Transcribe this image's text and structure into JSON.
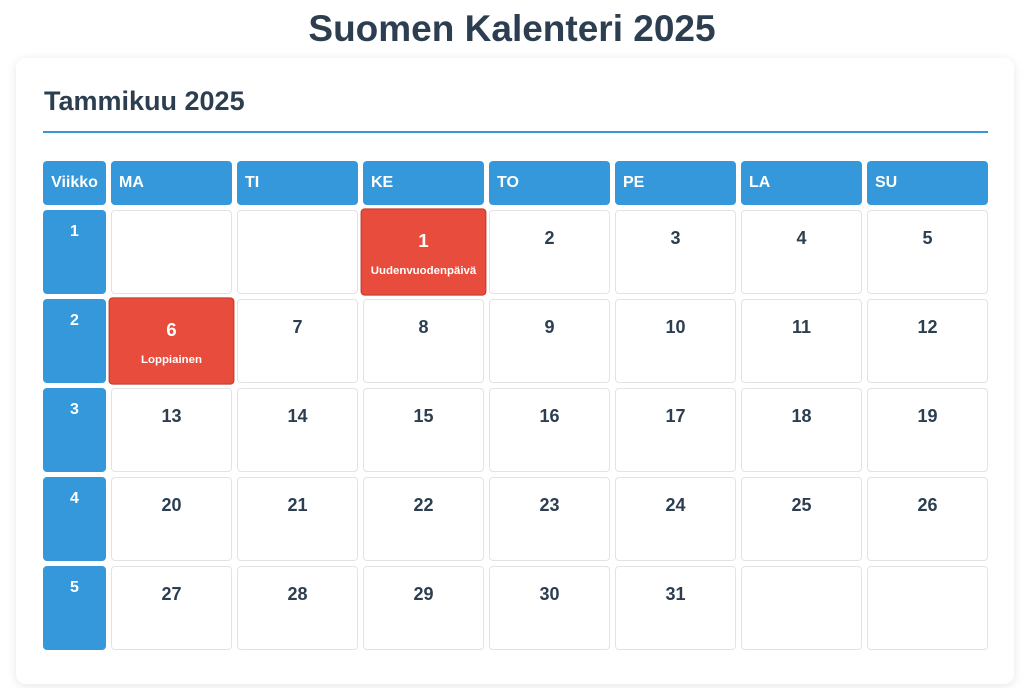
{
  "page_title": "Suomen Kalenteri 2025",
  "month_title": "Tammikuu 2025",
  "colors": {
    "accent": "#3498db",
    "holiday": "#e74c3c",
    "text": "#2c3e50"
  },
  "headers": [
    "Viikko",
    "MA",
    "TI",
    "KE",
    "TO",
    "PE",
    "LA",
    "SU"
  ],
  "weeks": [
    {
      "week": "1",
      "days": [
        "",
        "",
        "1",
        "2",
        "3",
        "4",
        "5"
      ]
    },
    {
      "week": "2",
      "days": [
        "6",
        "7",
        "8",
        "9",
        "10",
        "11",
        "12"
      ]
    },
    {
      "week": "3",
      "days": [
        "13",
        "14",
        "15",
        "16",
        "17",
        "18",
        "19"
      ]
    },
    {
      "week": "4",
      "days": [
        "20",
        "21",
        "22",
        "23",
        "24",
        "25",
        "26"
      ]
    },
    {
      "week": "5",
      "days": [
        "27",
        "28",
        "29",
        "30",
        "31",
        "",
        ""
      ]
    }
  ],
  "holidays": {
    "1": "Uudenvuodenpäivä",
    "6": "Loppiainen"
  }
}
